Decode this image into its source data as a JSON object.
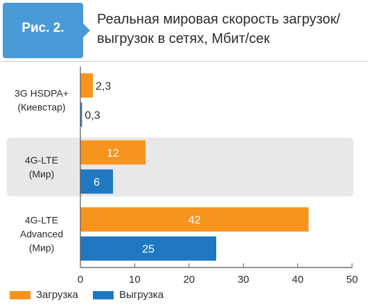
{
  "figure_label": "Рис. 2.",
  "title": "Реальная мировая скорость загрузок/выгрузок в сетях, Мбит/сек",
  "colors": {
    "download": "#f7941d",
    "upload": "#1f78c1",
    "badge": "#4a9ad8",
    "band": "#e8e8e8"
  },
  "chart_data": {
    "type": "bar",
    "orientation": "horizontal",
    "categories": [
      "3G HSDPA+ (Киевстар)",
      "4G-LTE (Мир)",
      "4G-LTE Advanced (Мир)"
    ],
    "category_lines": [
      [
        "3G HSDPA+",
        "(Киевстар)"
      ],
      [
        "4G-LTE",
        "(Мир)"
      ],
      [
        "4G-LTE",
        "Advanced",
        "(Мир)"
      ]
    ],
    "series": [
      {
        "name": "Загрузка",
        "values": [
          2.3,
          12,
          42
        ],
        "labels": [
          "2,3",
          "12",
          "42"
        ]
      },
      {
        "name": "Выгрузка",
        "values": [
          0.3,
          6,
          25
        ],
        "labels": [
          "0,3",
          "6",
          "25"
        ]
      }
    ],
    "xlim": [
      0,
      50
    ],
    "xticks": [
      0,
      10,
      20,
      30,
      40,
      50
    ],
    "xlabel": "",
    "ylabel": "",
    "shaded_band_category": 1,
    "legend_position": "bottom-left"
  }
}
